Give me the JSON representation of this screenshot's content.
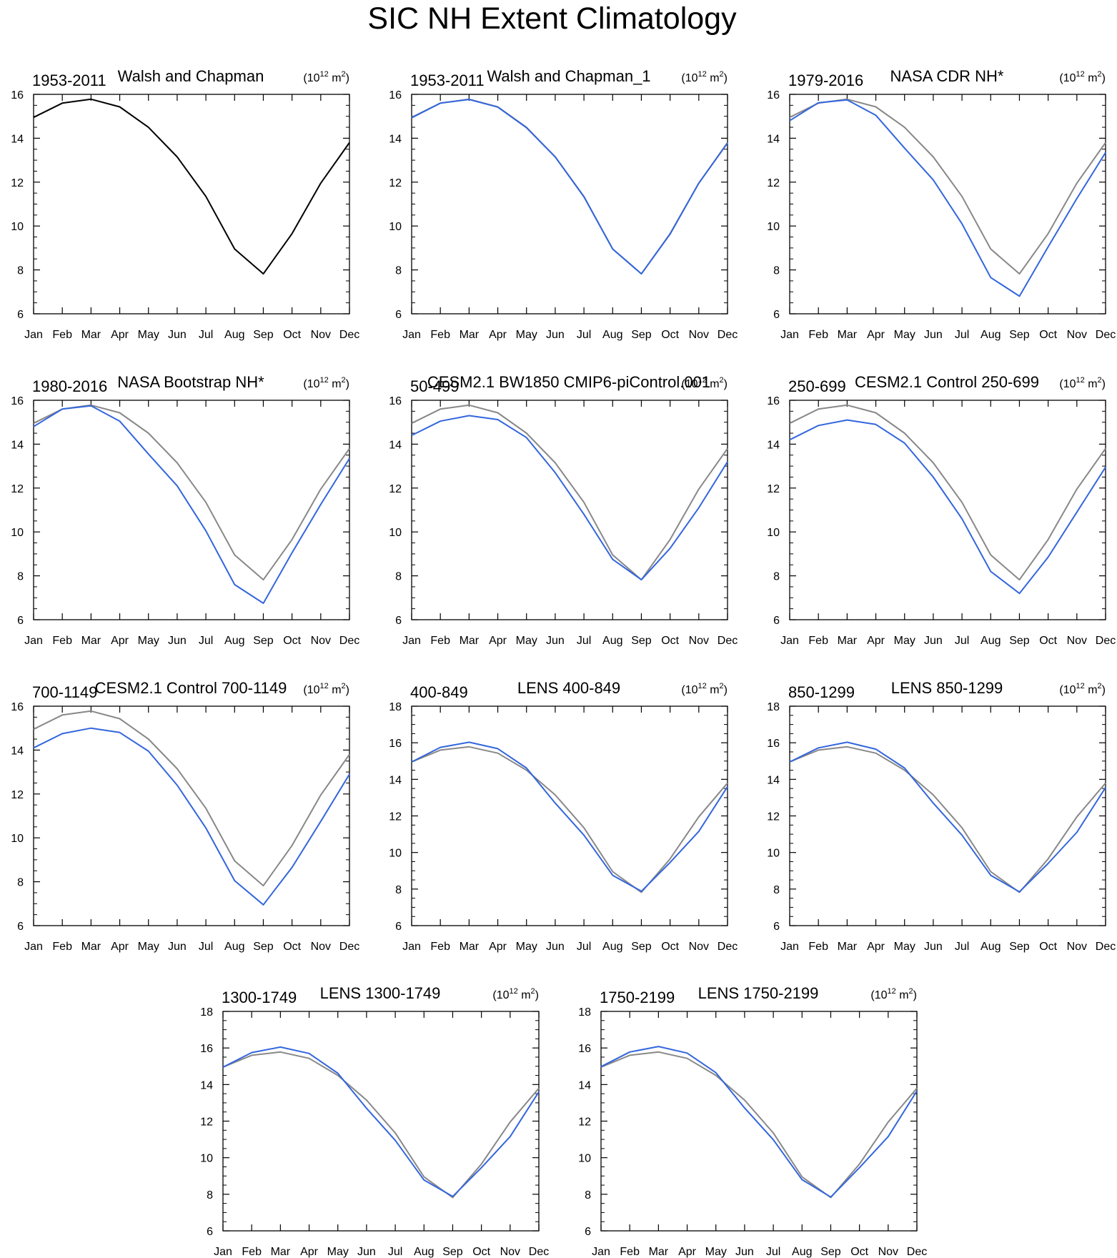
{
  "title": "SIC NH Extent Climatology",
  "colors": {
    "reference": "#888888",
    "reference_first": "#000000",
    "model": "#3366dd"
  },
  "chart_data": [
    {
      "type": "line",
      "left_label": "1953-2011",
      "center_label": "Walsh and Chapman",
      "units": "(10^12 m^2)",
      "categories": [
        "Jan",
        "Feb",
        "Mar",
        "Apr",
        "May",
        "Jun",
        "Jul",
        "Aug",
        "Sep",
        "Oct",
        "Nov",
        "Dec"
      ],
      "ylim": [
        6,
        16
      ],
      "yticks": [
        6,
        8,
        10,
        12,
        14,
        16
      ],
      "series": [
        {
          "values": [
            14.95,
            15.6,
            15.78,
            15.43,
            14.5,
            13.15,
            11.35,
            8.95,
            7.82,
            9.65,
            11.95,
            13.8
          ]
        }
      ]
    },
    {
      "type": "line",
      "left_label": "1953-2011",
      "center_label": "Walsh and Chapman_1",
      "units": "(10^12 m^2)",
      "categories": [
        "Jan",
        "Feb",
        "Mar",
        "Apr",
        "May",
        "Jun",
        "Jul",
        "Aug",
        "Sep",
        "Oct",
        "Nov",
        "Dec"
      ],
      "ylim": [
        6,
        16
      ],
      "yticks": [
        6,
        8,
        10,
        12,
        14,
        16
      ],
      "series": [
        {
          "values": [
            14.95,
            15.6,
            15.78,
            15.43,
            14.5,
            13.15,
            11.35,
            8.95,
            7.82,
            9.65,
            11.95,
            13.8
          ]
        },
        {
          "values": [
            14.93,
            15.6,
            15.77,
            15.42,
            14.48,
            13.15,
            11.33,
            8.95,
            7.82,
            9.63,
            11.95,
            13.78
          ]
        }
      ]
    },
    {
      "type": "line",
      "left_label": "1979-2016",
      "center_label": "NASA CDR NH*",
      "units": "(10^12 m^2)",
      "categories": [
        "Jan",
        "Feb",
        "Mar",
        "Apr",
        "May",
        "Jun",
        "Jul",
        "Aug",
        "Sep",
        "Oct",
        "Nov",
        "Dec"
      ],
      "ylim": [
        6,
        16
      ],
      "yticks": [
        6,
        8,
        10,
        12,
        14,
        16
      ],
      "series": [
        {
          "values": [
            14.95,
            15.6,
            15.78,
            15.43,
            14.5,
            13.15,
            11.35,
            8.95,
            7.82,
            9.65,
            11.95,
            13.8
          ]
        },
        {
          "values": [
            14.8,
            15.62,
            15.75,
            15.05,
            13.55,
            12.1,
            10.1,
            7.65,
            6.8,
            9.05,
            11.25,
            13.35
          ]
        }
      ]
    },
    {
      "type": "line",
      "left_label": "1980-2016",
      "center_label": "NASA Bootstrap NH*",
      "units": "(10^12 m^2)",
      "categories": [
        "Jan",
        "Feb",
        "Mar",
        "Apr",
        "May",
        "Jun",
        "Jul",
        "Aug",
        "Sep",
        "Oct",
        "Nov",
        "Dec"
      ],
      "ylim": [
        6,
        16
      ],
      "yticks": [
        6,
        8,
        10,
        12,
        14,
        16
      ],
      "series": [
        {
          "values": [
            14.95,
            15.6,
            15.78,
            15.43,
            14.5,
            13.15,
            11.35,
            8.95,
            7.82,
            9.65,
            11.95,
            13.8
          ]
        },
        {
          "values": [
            14.8,
            15.6,
            15.75,
            15.05,
            13.55,
            12.1,
            10.05,
            7.6,
            6.75,
            9.05,
            11.25,
            13.35
          ]
        }
      ]
    },
    {
      "type": "line",
      "left_label": "50-499",
      "center_label": "CESM2.1 BW1850 CMIP6-piControl.001",
      "units": "(10^12 m^2)",
      "categories": [
        "Jan",
        "Feb",
        "Mar",
        "Apr",
        "May",
        "Jun",
        "Jul",
        "Aug",
        "Sep",
        "Oct",
        "Nov",
        "Dec"
      ],
      "ylim": [
        6,
        16
      ],
      "yticks": [
        6,
        8,
        10,
        12,
        14,
        16
      ],
      "series": [
        {
          "values": [
            14.95,
            15.6,
            15.78,
            15.43,
            14.5,
            13.15,
            11.35,
            8.95,
            7.82,
            9.65,
            11.95,
            13.8
          ]
        },
        {
          "values": [
            14.4,
            15.05,
            15.3,
            15.12,
            14.3,
            12.7,
            10.8,
            8.75,
            7.82,
            9.25,
            11.1,
            13.2
          ]
        }
      ]
    },
    {
      "type": "line",
      "left_label": "250-699",
      "center_label": "CESM2.1 Control 250-699",
      "units": "(10^12 m^2)",
      "categories": [
        "Jan",
        "Feb",
        "Mar",
        "Apr",
        "May",
        "Jun",
        "Jul",
        "Aug",
        "Sep",
        "Oct",
        "Nov",
        "Dec"
      ],
      "ylim": [
        6,
        16
      ],
      "yticks": [
        6,
        8,
        10,
        12,
        14,
        16
      ],
      "series": [
        {
          "values": [
            14.95,
            15.6,
            15.78,
            15.43,
            14.5,
            13.15,
            11.35,
            8.95,
            7.82,
            9.65,
            11.95,
            13.8
          ]
        },
        {
          "values": [
            14.2,
            14.85,
            15.1,
            14.9,
            14.05,
            12.5,
            10.6,
            8.2,
            7.2,
            8.85,
            10.9,
            12.95
          ]
        }
      ]
    },
    {
      "type": "line",
      "left_label": "700-1149",
      "center_label": "CESM2.1 Control 700-1149",
      "units": "(10^12 m^2)",
      "categories": [
        "Jan",
        "Feb",
        "Mar",
        "Apr",
        "May",
        "Jun",
        "Jul",
        "Aug",
        "Sep",
        "Oct",
        "Nov",
        "Dec"
      ],
      "ylim": [
        6,
        16
      ],
      "yticks": [
        6,
        8,
        10,
        12,
        14,
        16
      ],
      "series": [
        {
          "values": [
            14.95,
            15.6,
            15.78,
            15.43,
            14.5,
            13.15,
            11.35,
            8.95,
            7.82,
            9.65,
            11.95,
            13.8
          ]
        },
        {
          "values": [
            14.1,
            14.75,
            15.0,
            14.8,
            13.95,
            12.4,
            10.45,
            8.05,
            6.95,
            8.65,
            10.75,
            12.9
          ]
        }
      ]
    },
    {
      "type": "line",
      "left_label": "400-849",
      "center_label": "LENS 400-849",
      "units": "(10^12 m^2)",
      "categories": [
        "Jan",
        "Feb",
        "Mar",
        "Apr",
        "May",
        "Jun",
        "Jul",
        "Aug",
        "Sep",
        "Oct",
        "Nov",
        "Dec"
      ],
      "ylim": [
        6,
        18
      ],
      "yticks": [
        6,
        8,
        10,
        12,
        14,
        16,
        18
      ],
      "series": [
        {
          "values": [
            14.95,
            15.6,
            15.78,
            15.43,
            14.5,
            13.15,
            11.35,
            8.95,
            7.82,
            9.65,
            11.95,
            13.8
          ]
        },
        {
          "values": [
            14.95,
            15.75,
            16.03,
            15.68,
            14.62,
            12.7,
            10.95,
            8.75,
            7.88,
            9.45,
            11.15,
            13.6
          ]
        }
      ]
    },
    {
      "type": "line",
      "left_label": "850-1299",
      "center_label": "LENS 850-1299",
      "units": "(10^12 m^2)",
      "categories": [
        "Jan",
        "Feb",
        "Mar",
        "Apr",
        "May",
        "Jun",
        "Jul",
        "Aug",
        "Sep",
        "Oct",
        "Nov",
        "Dec"
      ],
      "ylim": [
        6,
        18
      ],
      "yticks": [
        6,
        8,
        10,
        12,
        14,
        16,
        18
      ],
      "series": [
        {
          "values": [
            14.95,
            15.6,
            15.78,
            15.43,
            14.5,
            13.15,
            11.35,
            8.95,
            7.82,
            9.65,
            11.95,
            13.8
          ]
        },
        {
          "values": [
            14.95,
            15.72,
            16.03,
            15.65,
            14.62,
            12.7,
            10.95,
            8.75,
            7.85,
            9.4,
            11.1,
            13.55
          ]
        }
      ]
    },
    {
      "type": "line",
      "left_label": "1300-1749",
      "center_label": "LENS 1300-1749",
      "units": "(10^12 m^2)",
      "categories": [
        "Jan",
        "Feb",
        "Mar",
        "Apr",
        "May",
        "Jun",
        "Jul",
        "Aug",
        "Sep",
        "Oct",
        "Nov",
        "Dec"
      ],
      "ylim": [
        6,
        18
      ],
      "yticks": [
        6,
        8,
        10,
        12,
        14,
        16,
        18
      ],
      "series": [
        {
          "values": [
            14.95,
            15.6,
            15.78,
            15.43,
            14.5,
            13.15,
            11.35,
            8.95,
            7.82,
            9.65,
            11.95,
            13.8
          ]
        },
        {
          "values": [
            14.95,
            15.75,
            16.05,
            15.7,
            14.62,
            12.7,
            10.95,
            8.78,
            7.88,
            9.45,
            11.15,
            13.6
          ]
        }
      ]
    },
    {
      "type": "line",
      "left_label": "1750-2199",
      "center_label": "LENS 1750-2199",
      "units": "(10^12 m^2)",
      "categories": [
        "Jan",
        "Feb",
        "Mar",
        "Apr",
        "May",
        "Jun",
        "Jul",
        "Aug",
        "Sep",
        "Oct",
        "Nov",
        "Dec"
      ],
      "ylim": [
        6,
        18
      ],
      "yticks": [
        6,
        8,
        10,
        12,
        14,
        16,
        18
      ],
      "series": [
        {
          "values": [
            14.95,
            15.6,
            15.78,
            15.43,
            14.5,
            13.15,
            11.35,
            8.95,
            7.82,
            9.65,
            11.95,
            13.8
          ]
        },
        {
          "values": [
            14.98,
            15.78,
            16.08,
            15.72,
            14.65,
            12.72,
            10.98,
            8.8,
            7.85,
            9.45,
            11.15,
            13.65
          ]
        }
      ]
    }
  ]
}
